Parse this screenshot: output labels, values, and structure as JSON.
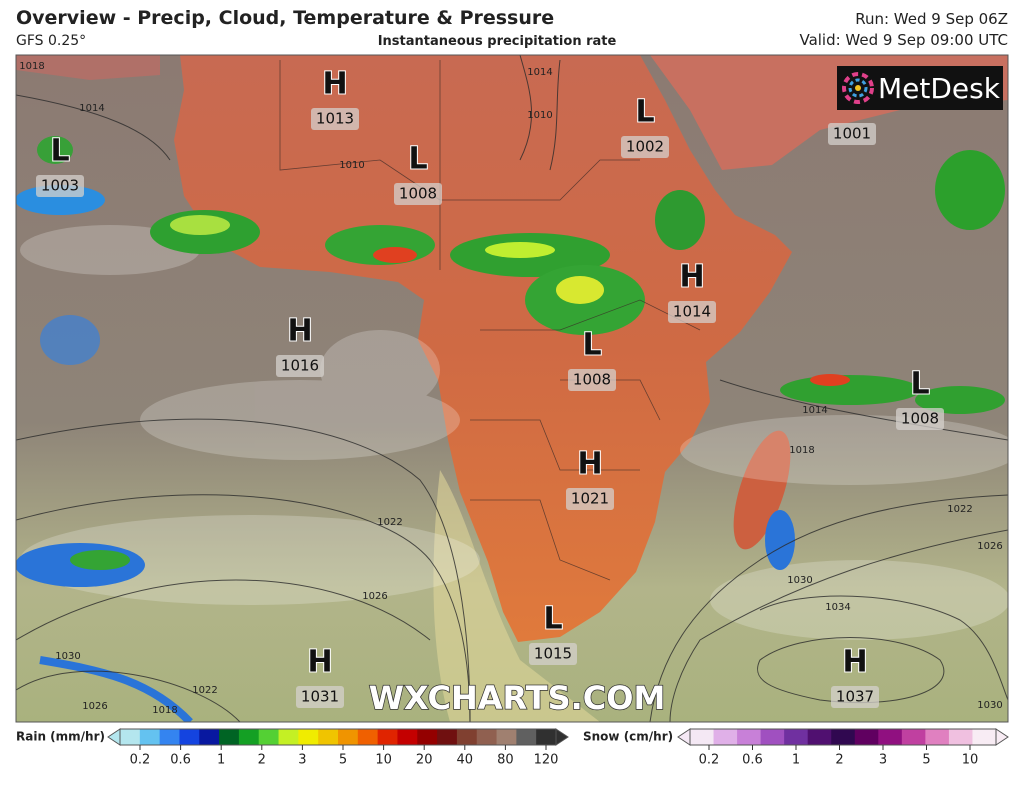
{
  "header": {
    "title": "Overview - Precip, Cloud, Temperature & Pressure",
    "model": "GFS 0.25°",
    "subtitle": "Instantaneous precipitation rate",
    "run": "Run: Wed 9 Sep 06Z",
    "valid": "Valid: Wed 9 Sep 09:00 UTC"
  },
  "brand": "MetDesk",
  "watermark": "WXCHARTS.COM",
  "pressure_centers": [
    {
      "letter": "H",
      "value": 1013
    },
    {
      "letter": "L",
      "value": 1002
    },
    {
      "value": 1001
    },
    {
      "letter": "L",
      "value": 1003
    },
    {
      "letter": "L",
      "value": 1008
    },
    {
      "letter": "H",
      "value": 1016
    },
    {
      "letter": "H",
      "value": 1014
    },
    {
      "letter": "L",
      "value": 1008
    },
    {
      "letter": "L",
      "value": 1008
    },
    {
      "letter": "H",
      "value": 1021
    },
    {
      "letter": "L",
      "value": 1015
    },
    {
      "letter": "H",
      "value": 1031
    },
    {
      "letter": "H",
      "value": 1037
    }
  ],
  "isobar_labels": [
    1018,
    1014,
    1010,
    1014,
    1010,
    1014,
    1018,
    1022,
    1022,
    1026,
    1026,
    1030,
    1034,
    1030,
    1026,
    1022,
    1018,
    1030
  ],
  "legend": {
    "rain": {
      "title": "Rain (mm/hr)",
      "ticks": [
        0.2,
        0.6,
        1,
        2,
        3,
        5,
        10,
        20,
        40,
        80,
        120
      ],
      "colors": [
        "#b4e6ee",
        "#64c2f0",
        "#3484f0",
        "#1444e0",
        "#0818a0",
        "#006424",
        "#14a024",
        "#54d034",
        "#c4f024",
        "#f0ec00",
        "#f0c400",
        "#f09400",
        "#f06000",
        "#e02400",
        "#c40000",
        "#940000",
        "#701010",
        "#804030",
        "#906050",
        "#a08070",
        "#606060",
        "#303030"
      ]
    },
    "snow": {
      "title": "Snow (cm/hr)",
      "ticks": [
        0.2,
        0.6,
        1,
        2,
        3,
        5,
        10
      ],
      "colors": [
        "#f4e8f4",
        "#e0b0e8",
        "#c880d8",
        "#a050c0",
        "#7030a0",
        "#501070",
        "#300850",
        "#600060",
        "#901080",
        "#c040a0",
        "#e080c0",
        "#f0c0e0",
        "#f8ecf4"
      ]
    }
  }
}
